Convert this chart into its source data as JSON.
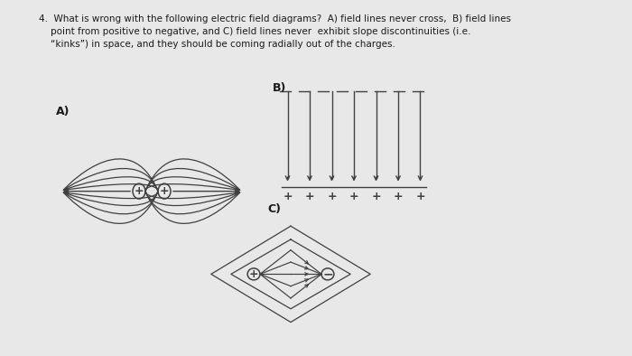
{
  "bg_color": "#e8e8e8",
  "title_line1": "4.  What is wrong with the following electric field diagrams?  A) field lines never cross,  B) field lines",
  "title_line2": "    point from positive to negative, and C) field lines never  exhibit slope discontinuities (i.e.",
  "title_line3": "    “kinks”) in space, and they should be coming radially out of the charges.",
  "label_A": "A)",
  "label_B": "B)",
  "label_C": "C)",
  "text_color": "#1a1a1a",
  "line_color": "#404040",
  "arrow_color": "#404040",
  "title_fontsize": 7.5,
  "label_fontsize": 9.0,
  "fig_width": 7.0,
  "fig_height": 3.94,
  "dpi": 100
}
